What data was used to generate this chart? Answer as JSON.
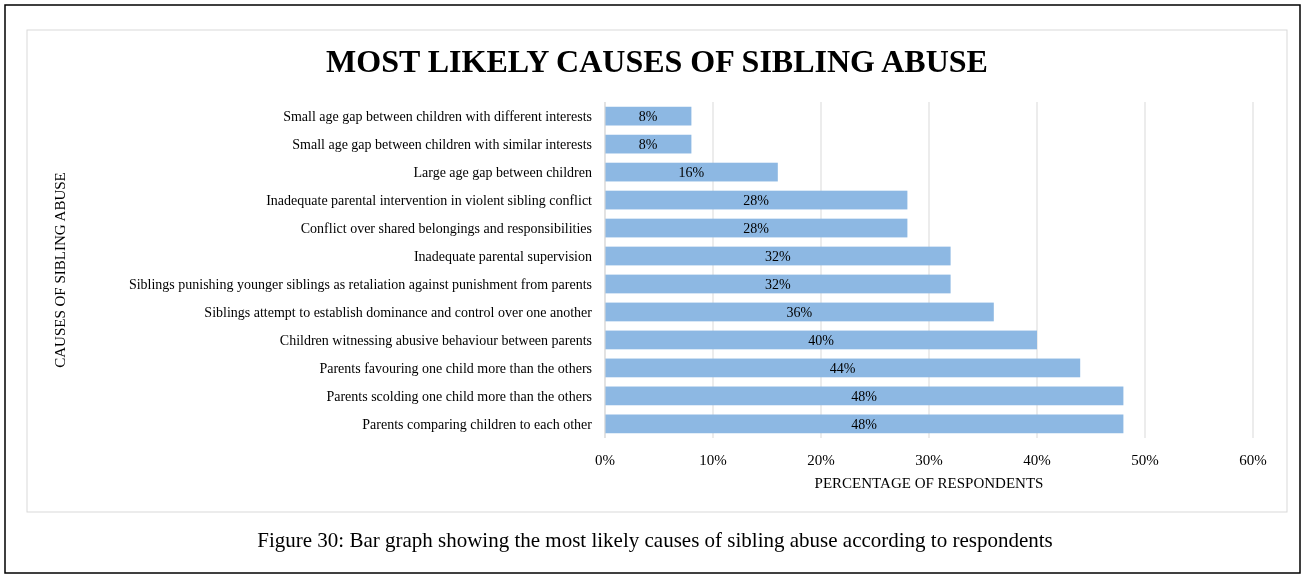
{
  "chart_data": {
    "type": "bar",
    "orientation": "horizontal",
    "title": "MOST LIKELY CAUSES OF SIBLING ABUSE",
    "xlabel": "PERCENTAGE OF RESPONDENTS",
    "ylabel": "CAUSES OF SIBLING ABUSE",
    "categories": [
      "Small age gap between children with different interests",
      "Small age gap between children with similar interests",
      "Large age gap between children",
      "Inadequate parental intervention in violent sibling conflict",
      "Conflict over shared belongings and responsibilities",
      "Inadequate parental supervision",
      "Siblings punishing younger siblings as retaliation against punishment from parents",
      "Siblings attempt to establish dominance and control over one another",
      "Children witnessing abusive behaviour between parents",
      "Parents favouring one child more than the others",
      "Parents scolding one child more than the others",
      "Parents comparing children to each other"
    ],
    "values": [
      8,
      8,
      16,
      28,
      28,
      32,
      32,
      36,
      40,
      44,
      48,
      48
    ],
    "value_labels": [
      "8%",
      "8%",
      "16%",
      "28%",
      "28%",
      "32%",
      "32%",
      "36%",
      "40%",
      "44%",
      "48%",
      "48%"
    ],
    "color": "#8db8e3",
    "xlim": [
      0,
      60
    ],
    "xticks": [
      {
        "value": 0,
        "label": "0%"
      },
      {
        "value": 10,
        "label": "10%"
      },
      {
        "value": 20,
        "label": "20%"
      },
      {
        "value": 30,
        "label": "30%"
      },
      {
        "value": 40,
        "label": "40%"
      },
      {
        "value": 50,
        "label": "50%"
      },
      {
        "value": 60,
        "label": "60%"
      }
    ],
    "grid": "x",
    "annotations": [
      "Figure 30: Bar graph showing the most likely causes of sibling abuse according to respondents"
    ]
  }
}
